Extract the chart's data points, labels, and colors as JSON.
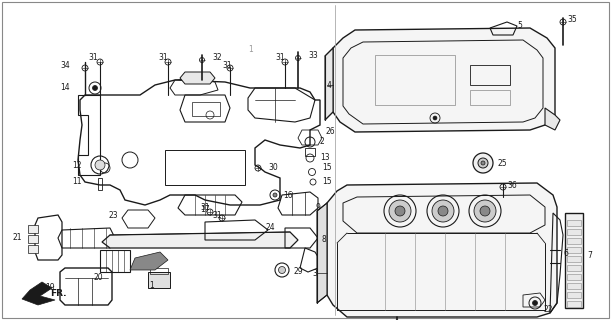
{
  "bg_color": "#ffffff",
  "line_color": "#1a1a1a",
  "figsize": [
    6.11,
    3.2
  ],
  "dpi": 100,
  "border_color": "#cccccc"
}
